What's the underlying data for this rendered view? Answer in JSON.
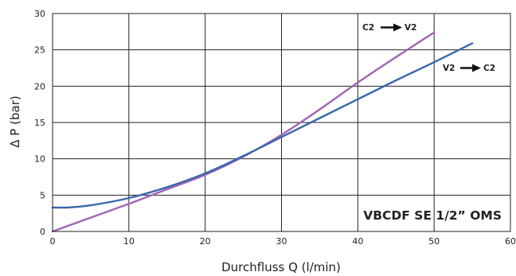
{
  "chart_data": {
    "type": "line",
    "title": "VBCDF SE 1/2” OMS",
    "xlabel": "Durchfluss Q (l/min)",
    "ylabel": "Δ P (bar)",
    "xlim": [
      0,
      60
    ],
    "ylim": [
      0,
      30
    ],
    "xticks": [
      0,
      10,
      20,
      30,
      40,
      50,
      60
    ],
    "yticks": [
      0,
      5,
      10,
      15,
      20,
      25,
      30
    ],
    "grid": true,
    "series": [
      {
        "color": "#a064b4",
        "x": [
          0,
          5,
          10,
          15,
          20,
          25,
          30,
          35,
          40,
          45,
          50
        ],
        "y": [
          0,
          1.9,
          3.8,
          5.8,
          7.8,
          10.3,
          13.3,
          16.8,
          20.5,
          24.0,
          27.4
        ]
      },
      {
        "color": "#3a67ab",
        "x": [
          0,
          2,
          5,
          10,
          15,
          20,
          25,
          30,
          35,
          40,
          45,
          50,
          55
        ],
        "y": [
          3.3,
          3.3,
          3.6,
          4.6,
          6.1,
          8.0,
          10.4,
          13.0,
          15.6,
          18.2,
          20.8,
          23.3,
          25.9
        ]
      }
    ],
    "annotations": [
      {
        "from": "C2",
        "to": "V2"
      },
      {
        "from": "V2",
        "to": "C2"
      }
    ]
  }
}
